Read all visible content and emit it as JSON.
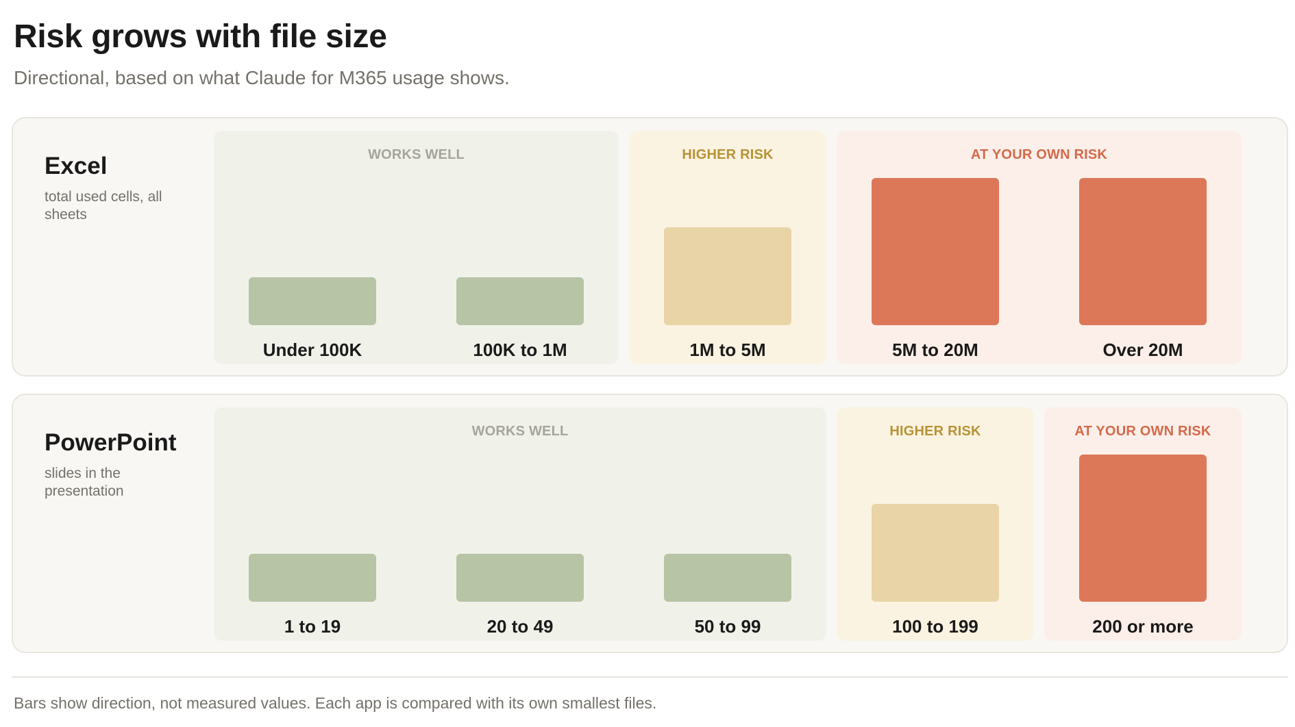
{
  "title": "Risk grows with file size",
  "subtitle": "Directional, based on what Claude for M365 usage shows.",
  "footnote": "Bars show direction, not measured values. Each app is compared with its own smallest files.",
  "colors": {
    "works_well": "#b7c4a5",
    "higher_risk": "#e8d4a6",
    "own_risk": "#dc7858"
  },
  "chart_data": [
    {
      "type": "bar",
      "app": "Excel",
      "description": "total used cells, all sheets",
      "categories": [
        "Under 100K",
        "100K to 1M",
        "1M to 5M",
        "5M to 20M",
        "Over 20M"
      ],
      "values": [
        1,
        1,
        2,
        3,
        3
      ],
      "zones": [
        {
          "label": "WORKS WELL",
          "level": "works",
          "count": 2
        },
        {
          "label": "HIGHER RISK",
          "level": "higher",
          "count": 1
        },
        {
          "label": "AT YOUR OWN RISK",
          "level": "risk",
          "count": 2
        }
      ]
    },
    {
      "type": "bar",
      "app": "PowerPoint",
      "description": "slides in the presentation",
      "categories": [
        "1 to 19",
        "20 to 49",
        "50 to 99",
        "100 to 199",
        "200 or more"
      ],
      "values": [
        1,
        1,
        1,
        2,
        3
      ],
      "zones": [
        {
          "label": "WORKS WELL",
          "level": "works",
          "count": 3
        },
        {
          "label": "HIGHER RISK",
          "level": "higher",
          "count": 1
        },
        {
          "label": "AT YOUR OWN RISK",
          "level": "risk",
          "count": 1
        }
      ]
    }
  ]
}
